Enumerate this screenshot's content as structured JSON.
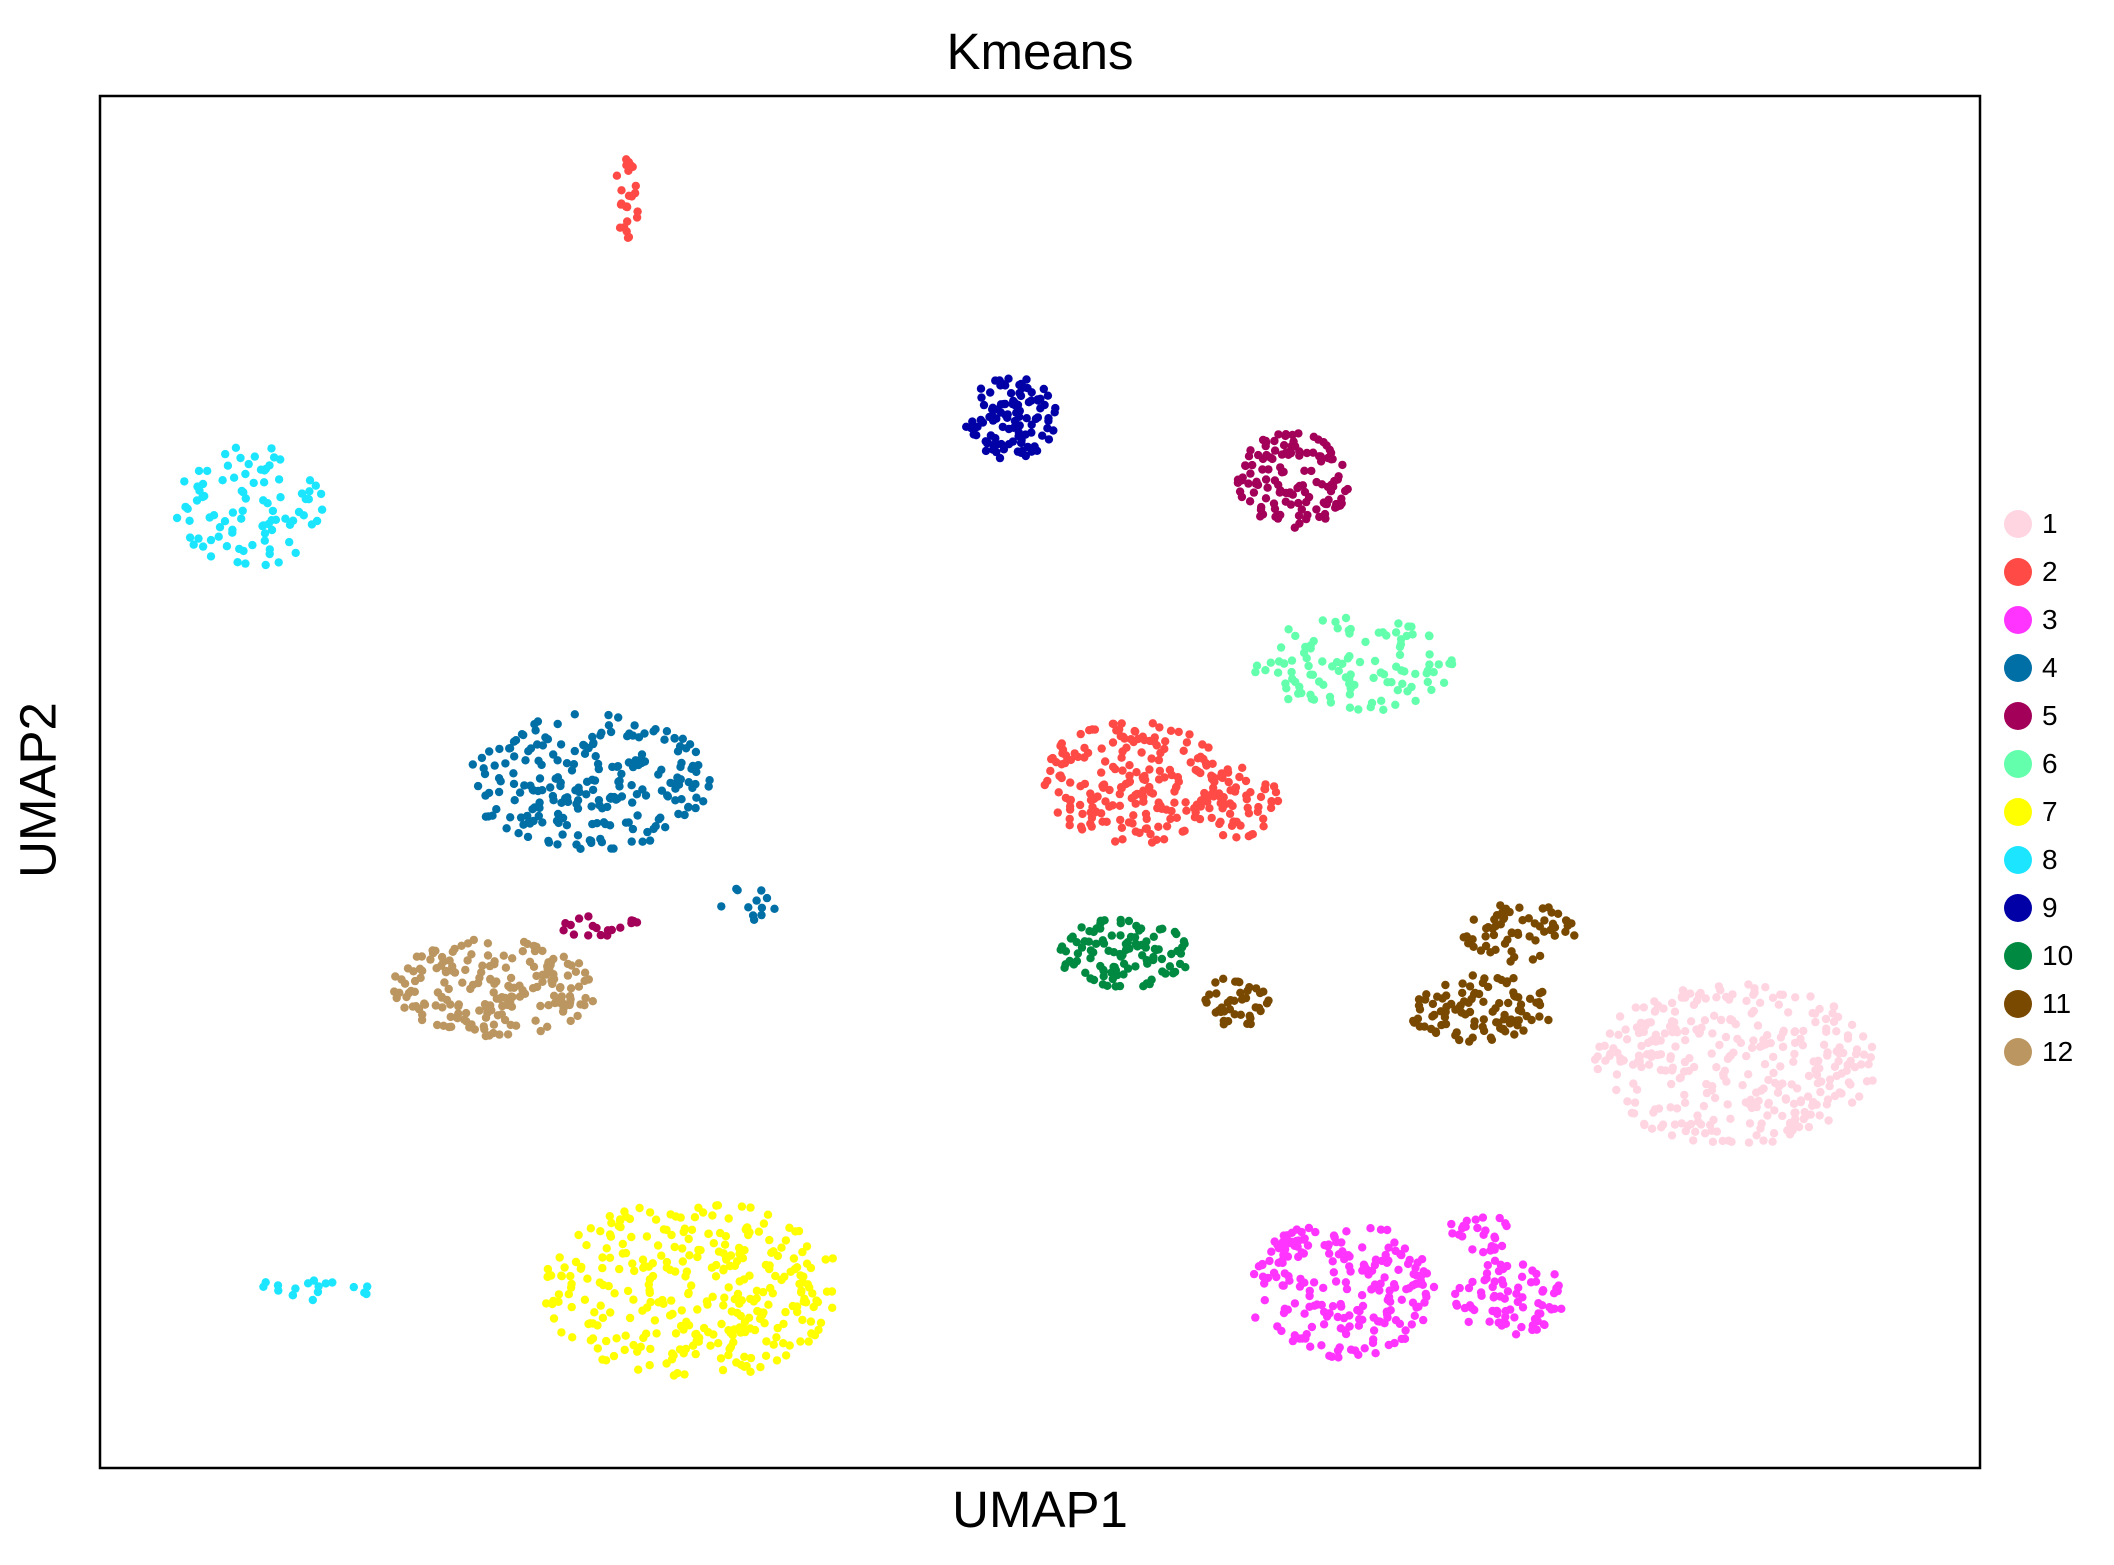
{
  "chart_data": {
    "type": "scatter",
    "title": "Kmeans",
    "xlabel": "UMAP1",
    "ylabel": "UMAP2",
    "xlim": [
      0,
      100
    ],
    "ylim": [
      0,
      100
    ],
    "grid": false,
    "ticks": false,
    "legend_position": "right",
    "series": [
      {
        "name": "1",
        "color": "#FFD5E2",
        "clusters": [
          {
            "cx": 87.0,
            "cy": 29.5,
            "rx": 7.5,
            "ry": 6.0,
            "n": 340
          }
        ]
      },
      {
        "name": "2",
        "color": "#FF4A46",
        "clusters": [
          {
            "cx": 55.0,
            "cy": 50.0,
            "rx": 5.0,
            "ry": 4.5,
            "n": 200
          },
          {
            "cx": 60.5,
            "cy": 48.5,
            "rx": 2.3,
            "ry": 2.6,
            "n": 60
          },
          {
            "cx": 28.0,
            "cy": 92.5,
            "rx": 0.7,
            "ry": 3.0,
            "n": 25
          }
        ]
      },
      {
        "name": "3",
        "color": "#FF34FF",
        "clusters": [
          {
            "cx": 66.0,
            "cy": 13.0,
            "rx": 5.0,
            "ry": 5.0,
            "n": 210
          },
          {
            "cx": 75.0,
            "cy": 12.5,
            "rx": 3.0,
            "ry": 2.8,
            "n": 80
          },
          {
            "cx": 73.5,
            "cy": 17.5,
            "rx": 1.8,
            "ry": 1.8,
            "n": 25
          }
        ]
      },
      {
        "name": "4",
        "color": "#006FA6",
        "clusters": [
          {
            "cx": 26.0,
            "cy": 50.0,
            "rx": 6.5,
            "ry": 5.0,
            "n": 230
          },
          {
            "cx": 34.5,
            "cy": 41.0,
            "rx": 1.5,
            "ry": 1.5,
            "n": 12
          }
        ]
      },
      {
        "name": "5",
        "color": "#A30059",
        "clusters": [
          {
            "cx": 63.5,
            "cy": 72.0,
            "rx": 3.0,
            "ry": 3.5,
            "n": 130
          },
          {
            "cx": 26.5,
            "cy": 39.5,
            "rx": 2.2,
            "ry": 0.8,
            "n": 18
          }
        ]
      },
      {
        "name": "6",
        "color": "#63FFAC",
        "clusters": [
          {
            "cx": 66.5,
            "cy": 58.5,
            "rx": 5.5,
            "ry": 3.5,
            "n": 110
          }
        ]
      },
      {
        "name": "7",
        "color": "#FFFF00",
        "clusters": [
          {
            "cx": 31.5,
            "cy": 13.0,
            "rx": 8.0,
            "ry": 6.5,
            "n": 330
          }
        ]
      },
      {
        "name": "8",
        "color": "#1CE6FF",
        "clusters": [
          {
            "cx": 8.0,
            "cy": 70.0,
            "rx": 4.0,
            "ry": 4.5,
            "n": 90
          },
          {
            "cx": 11.0,
            "cy": 13.0,
            "rx": 3.5,
            "ry": 0.8,
            "n": 18
          }
        ]
      },
      {
        "name": "9",
        "color": "#0000A6",
        "clusters": [
          {
            "cx": 48.5,
            "cy": 76.5,
            "rx": 2.5,
            "ry": 3.0,
            "n": 110
          }
        ]
      },
      {
        "name": "10",
        "color": "#008941",
        "clusters": [
          {
            "cx": 54.5,
            "cy": 37.5,
            "rx": 3.5,
            "ry": 2.6,
            "n": 110
          }
        ]
      },
      {
        "name": "11",
        "color": "#7A4900",
        "clusters": [
          {
            "cx": 75.5,
            "cy": 39.0,
            "rx": 3.0,
            "ry": 2.2,
            "n": 60
          },
          {
            "cx": 73.5,
            "cy": 33.5,
            "rx": 4.0,
            "ry": 2.5,
            "n": 100
          },
          {
            "cx": 60.5,
            "cy": 34.0,
            "rx": 1.7,
            "ry": 2.0,
            "n": 40
          }
        ]
      },
      {
        "name": "12",
        "color": "#BB9660",
        "clusters": [
          {
            "cx": 21.0,
            "cy": 35.0,
            "rx": 5.5,
            "ry": 3.6,
            "n": 200
          }
        ]
      }
    ]
  }
}
